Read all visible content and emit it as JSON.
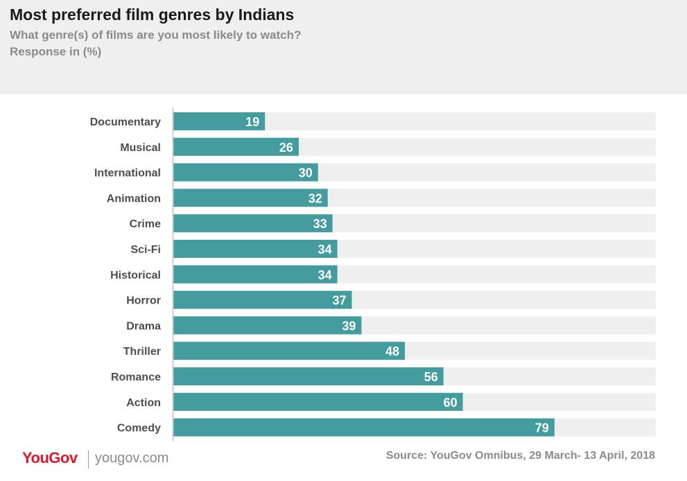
{
  "header": {
    "title": "Most preferred film genres by Indians",
    "subtitle": "What genre(s) of films are you most likely to watch?",
    "unit_note": "Response in (%)"
  },
  "chart_data": {
    "type": "bar",
    "orientation": "horizontal",
    "categories": [
      "Documentary",
      "Musical",
      "International",
      "Animation",
      "Crime",
      "Sci-Fi",
      "Historical",
      "Horror",
      "Drama",
      "Thriller",
      "Romance",
      "Action",
      "Comedy"
    ],
    "values": [
      19,
      26,
      30,
      32,
      33,
      34,
      34,
      37,
      39,
      48,
      56,
      60,
      79
    ],
    "xlim": [
      0,
      100
    ],
    "grid": false,
    "legend": "none",
    "colors": {
      "bar": "#459c9e",
      "track": "#efefef",
      "label": "#4d4d4d",
      "value_label": "#ffffff",
      "axis_line": "#cccccc"
    }
  },
  "footer": {
    "logo": "YouGov",
    "site": "yougov.com",
    "source": "Source: YouGov Omnibus, 29 March- 13 April, 2018"
  }
}
